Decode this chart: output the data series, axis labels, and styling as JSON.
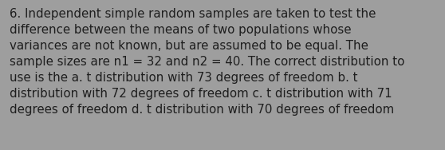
{
  "lines": [
    "6. Independent simple random samples are taken to test the",
    "difference between the means of two populations whose",
    "variances are not known, but are assumed to be equal. The",
    "sample sizes are n1 = 32 and n2 = 40. The correct distribution to",
    "use is the a. t distribution with 73 degrees of freedom b. t",
    "distribution with 72 degrees of freedom c. t distribution with 71",
    "degrees of freedom d. t distribution with 70 degrees of freedom"
  ],
  "background_color": "#9e9e9e",
  "text_color": "#1e1e1e",
  "font_size": 10.8,
  "fig_width": 5.58,
  "fig_height": 1.88,
  "dpi": 100
}
